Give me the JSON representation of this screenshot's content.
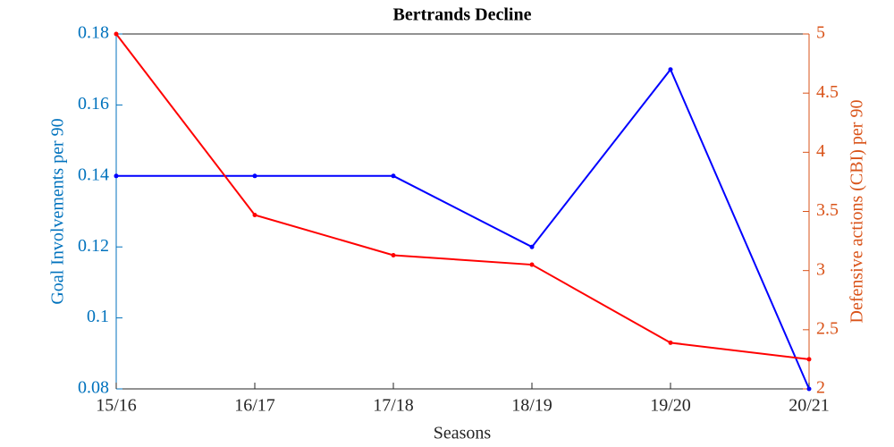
{
  "chart_data": {
    "type": "line",
    "title": "Bertrands Decline",
    "xlabel": "Seasons",
    "ylabel": "Goal Involvements per 90",
    "y2label": "Defensive actions (CBI) per 90",
    "categories": [
      "15/16",
      "16/17",
      "17/18",
      "18/19",
      "19/20",
      "20/21"
    ],
    "series": [
      {
        "color": "#0000ff",
        "values": [
          0.14,
          0.14,
          0.14,
          0.12,
          0.17,
          0.08
        ]
      },
      {
        "color": "#ff0000",
        "axis": "y2",
        "values": [
          5,
          3.47,
          3.13,
          3.05,
          2.39,
          2.25
        ]
      }
    ],
    "ylim": [
      0.08,
      0.18
    ],
    "yticks": [
      0.08,
      0.1,
      0.12,
      0.14,
      0.16,
      0.18
    ],
    "y2lim": [
      2,
      5
    ],
    "y2ticks": [
      2,
      2.5,
      3,
      3.5,
      4,
      4.5,
      5
    ],
    "y_axis_color": "#0072bd",
    "y2_axis_color": "#d95319",
    "grid": false
  }
}
